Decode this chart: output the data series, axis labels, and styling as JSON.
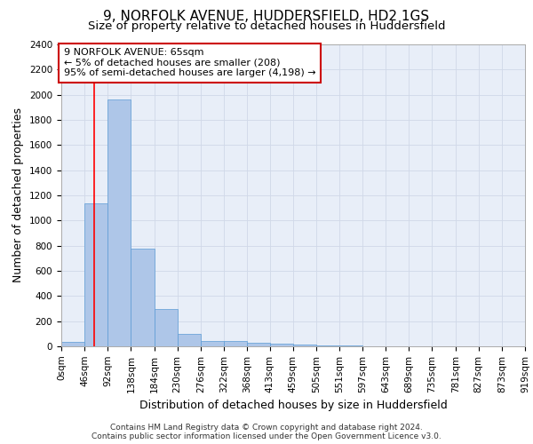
{
  "title_line1": "9, NORFOLK AVENUE, HUDDERSFIELD, HD2 1GS",
  "title_line2": "Size of property relative to detached houses in Huddersfield",
  "xlabel": "Distribution of detached houses by size in Huddersfield",
  "ylabel": "Number of detached properties",
  "footer_line1": "Contains HM Land Registry data © Crown copyright and database right 2024.",
  "footer_line2": "Contains public sector information licensed under the Open Government Licence v3.0.",
  "bin_edges": [
    0,
    46,
    92,
    138,
    184,
    230,
    276,
    322,
    368,
    413,
    459,
    505,
    551,
    597,
    643,
    689,
    735,
    781,
    827,
    873,
    919
  ],
  "bar_heights": [
    35,
    1135,
    1960,
    775,
    300,
    100,
    45,
    40,
    30,
    20,
    15,
    10,
    5,
    3,
    2,
    1,
    1,
    1,
    0,
    0
  ],
  "bar_color": "#aec6e8",
  "bar_edge_color": "#5b9bd5",
  "grid_color": "#d0d8e8",
  "background_color": "#e8eef8",
  "red_line_x": 65,
  "annotation_text": "9 NORFOLK AVENUE: 65sqm\n← 5% of detached houses are smaller (208)\n95% of semi-detached houses are larger (4,198) →",
  "annotation_box_color": "#ffffff",
  "annotation_box_edge": "#cc0000",
  "ylim": [
    0,
    2400
  ],
  "yticks": [
    0,
    200,
    400,
    600,
    800,
    1000,
    1200,
    1400,
    1600,
    1800,
    2000,
    2200,
    2400
  ],
  "title_fontsize": 11,
  "subtitle_fontsize": 9.5,
  "axis_label_fontsize": 9,
  "tick_fontsize": 7.5,
  "annotation_fontsize": 8,
  "footer_fontsize": 6.5
}
